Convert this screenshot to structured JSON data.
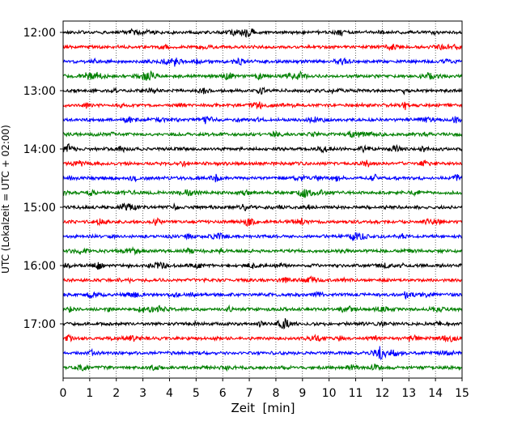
{
  "chart_data": {
    "type": "line",
    "title": "",
    "xlabel": "Zeit  [min]",
    "ylabel": "UTC (Lokalzeit = UTC + 02:00)",
    "xlim": [
      0,
      15
    ],
    "x_ticks": [
      "0",
      "1",
      "2",
      "3",
      "4",
      "5",
      "6",
      "7",
      "8",
      "9",
      "10",
      "11",
      "12",
      "13",
      "14",
      "15"
    ],
    "y_tick_labels": [
      "12:00",
      "13:00",
      "14:00",
      "15:00",
      "16:00",
      "17:00"
    ],
    "grid": "vertical dotted lines at each minute",
    "trace_interval_min": 15,
    "start_time": "12:00",
    "color_cycle": [
      "#000000",
      "#ff0000",
      "#0000ff",
      "#008000"
    ],
    "traces": [
      {
        "start": "12:00",
        "color": "#000000"
      },
      {
        "start": "12:15",
        "color": "#ff0000"
      },
      {
        "start": "12:30",
        "color": "#0000ff"
      },
      {
        "start": "12:45",
        "color": "#008000"
      },
      {
        "start": "13:00",
        "color": "#000000"
      },
      {
        "start": "13:15",
        "color": "#ff0000"
      },
      {
        "start": "13:30",
        "color": "#0000ff"
      },
      {
        "start": "13:45",
        "color": "#008000"
      },
      {
        "start": "14:00",
        "color": "#000000"
      },
      {
        "start": "14:15",
        "color": "#ff0000"
      },
      {
        "start": "14:30",
        "color": "#0000ff"
      },
      {
        "start": "14:45",
        "color": "#008000"
      },
      {
        "start": "15:00",
        "color": "#000000"
      },
      {
        "start": "15:15",
        "color": "#ff0000"
      },
      {
        "start": "15:30",
        "color": "#0000ff"
      },
      {
        "start": "15:45",
        "color": "#008000"
      },
      {
        "start": "16:00",
        "color": "#000000"
      },
      {
        "start": "16:15",
        "color": "#ff0000"
      },
      {
        "start": "16:30",
        "color": "#0000ff"
      },
      {
        "start": "16:45",
        "color": "#008000"
      },
      {
        "start": "17:00",
        "color": "#000000"
      },
      {
        "start": "17:15",
        "color": "#ff0000"
      },
      {
        "start": "17:30",
        "color": "#0000ff"
      },
      {
        "start": "17:45",
        "color": "#008000"
      }
    ]
  }
}
